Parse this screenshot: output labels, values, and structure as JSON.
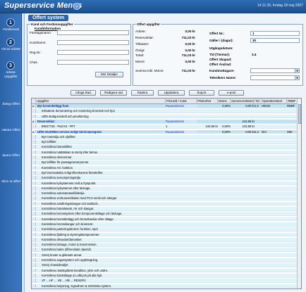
{
  "app": {
    "title": "Superservice Menus",
    "datetime": "14:11:35, fredag 18 maj 2007"
  },
  "form": {
    "title": "Offert system"
  },
  "sidebar": {
    "items": [
      {
        "num": "1",
        "label": "Fordonsval"
      },
      {
        "num": "2",
        "label": "Val av arbete"
      },
      {
        "num": "3",
        "label": "Arbete-Uppgifter"
      },
      {
        "num": "",
        "label": "Stäng Offert"
      },
      {
        "num": "",
        "label": "Hämta Offert"
      },
      {
        "num": "",
        "label": "Spara Offert"
      },
      {
        "num": "",
        "label": "Skriv ut offert"
      }
    ]
  },
  "customer": {
    "title": "Kund och Fordonsuppgifter",
    "subtitle": "Kundinformation",
    "labels": [
      "Företagsnamn:",
      "Kundnamn:",
      "Reg.Nr.:",
      "Chas."
    ],
    "details_button": "Mer Detaljer"
  },
  "offer": {
    "title": "Offert uppgifter",
    "left": [
      {
        "label": "Arbete:",
        "value": "0,00 kr"
      },
      {
        "label": "Reservdelar:",
        "value": "711,03 kr"
      },
      {
        "label": "Tillsatser:",
        "value": "0,00 kr"
      },
      {
        "label": "Övrigt:",
        "value": "0,00 kr"
      },
      {
        "label": "Totalt:",
        "value": "711,03 kr"
      },
      {
        "label": "Moms:",
        "value": "0,00 kr"
      },
      {
        "label": "Summa Inkl. Moms:",
        "value": "711,03 kr"
      }
    ],
    "right": [
      {
        "label": "Offert Nr.:",
        "value": "1"
      },
      {
        "label": "Gäller i (dagar):",
        "value": "30"
      },
      {
        "label": "Utgångsdatum:",
        "value": ""
      },
      {
        "label": "Tid (Timmar):",
        "value": "3,4"
      },
      {
        "label": "Offert Skapad:",
        "value": ""
      },
      {
        "label": "Offert Ändrad:",
        "value": ""
      },
      {
        "label": "Kundmottagare:",
        "value": ""
      },
      {
        "label": "Telenikers Namn:",
        "value": ""
      }
    ]
  },
  "toolbar": {
    "buttons": [
      "Infoga Rad",
      "Redigera rad",
      "Radera",
      "Uppdatera",
      "Export",
      "e-post"
    ]
  },
  "grid": {
    "columns": [
      "Uppgifter",
      "Prisnivå / Antal",
      "Prislenhet",
      "Moms",
      "Summa ExMoms",
      "Tid",
      "Operationskod",
      "RBBF"
    ],
    "rows": [
      {
        "type": "group",
        "task": "Byt bromsbelägg fram",
        "prisniva": "Reparationsm",
        "prislenhet": "",
        "moms": "0,00%",
        "summa": "0,00 kr",
        "tid": "1,0",
        "opkod": "H0042",
        "rbbf": "RBBF"
      },
      {
        "type": "sub",
        "task": "Inkluderar demontering och montering bromsok och hjul",
        "prisniva": "",
        "prislenhet": "",
        "moms": "",
        "summa": "",
        "tid": "",
        "opkod": "",
        "rbbf": ""
      },
      {
        "type": "sub",
        "task": "Utför slutlig kontroll och provkörning",
        "prisniva": "",
        "prislenhet": "",
        "moms": "",
        "summa": "",
        "tid": "",
        "opkod": "",
        "rbbf": ""
      },
      {
        "type": "group",
        "task": "Reservdelar:",
        "prisniva": "Reparationsm",
        "prislenhet": "",
        "moms": "",
        "summa": "244,96 kr",
        "tid": "",
        "opkod": "",
        "rbbf": ""
      },
      {
        "type": "sub",
        "task": "89047725 - Pad Kit - FRT",
        "prisniva": "1",
        "prislenhet": "244,96 kr",
        "moms": "0,00%",
        "summa": "244,96 kr",
        "tid": "",
        "opkod": "",
        "rbbf": ""
      },
      {
        "type": "group",
        "task": "Utför 60,000km service enligt Serviceprogram",
        "prisniva": "Reparationsm",
        "prislenhet": "",
        "moms": "0,00%",
        "summa": "0,00 kr",
        "tid": "2,4",
        "opkod": "N/A",
        "rbbf": "S60"
      },
      {
        "type": "sub",
        "task": "Byt motorolja och oljefilter",
        "prisniva": "",
        "prislenhet": "",
        "moms": "",
        "summa": "",
        "tid": "",
        "opkod": "",
        "rbbf": ""
      },
      {
        "type": "sub",
        "task": "Byt luftfilter",
        "prisniva": "",
        "prislenhet": "",
        "moms": "",
        "summa": "",
        "tid": "",
        "opkod": "",
        "rbbf": ""
      },
      {
        "type": "sub",
        "task": "Kontrollera bränslefilter",
        "prisniva": "",
        "prislenhet": "",
        "moms": "",
        "summa": "",
        "tid": "",
        "opkod": "",
        "rbbf": ""
      },
      {
        "type": "sub",
        "task": "Kontrollera tvättätskan & smörj efter behov.",
        "prisniva": "",
        "prislenhet": "",
        "moms": "",
        "summa": "",
        "tid": "",
        "opkod": "",
        "rbbf": ""
      },
      {
        "type": "sub",
        "task": "Kontrollera drivremmar",
        "prisniva": "",
        "prislenhet": "",
        "moms": "",
        "summa": "",
        "tid": "",
        "opkod": "",
        "rbbf": ""
      },
      {
        "type": "sub",
        "task": "Byt luftfilter för passagerarutrymmet",
        "prisniva": "",
        "prislenhet": "",
        "moms": "",
        "summa": "",
        "tid": "",
        "opkod": "",
        "rbbf": ""
      },
      {
        "type": "sub",
        "task": "Kontrollera A/C funktion",
        "prisniva": "",
        "prislenhet": "",
        "moms": "",
        "summa": "",
        "tid": "",
        "opkod": "",
        "rbbf": ""
      },
      {
        "type": "sub",
        "task": "Byt bromsvätska enligt tillverkarens föreskrifter.",
        "prisniva": "",
        "prislenhet": "",
        "moms": "",
        "summa": "",
        "tid": "",
        "opkod": "",
        "rbbf": ""
      },
      {
        "type": "sub",
        "task": "Kontrollera servostyrningsolja",
        "prisniva": "",
        "prislenhet": "",
        "moms": "",
        "summa": "",
        "tid": "",
        "opkod": "",
        "rbbf": ""
      },
      {
        "type": "sub",
        "task": "Kontrollera kylsystemets nivå & fryspunkt.",
        "prisniva": "",
        "prislenhet": "",
        "moms": "",
        "summa": "",
        "tid": "",
        "opkod": "",
        "rbbf": ""
      },
      {
        "type": "sub",
        "task": "Kontrollera kylsystemet efter läckage.",
        "prisniva": "",
        "prislenhet": "",
        "moms": "",
        "summa": "",
        "tid": "",
        "opkod": "",
        "rbbf": ""
      },
      {
        "type": "sub",
        "task": "Kontrollera automatväxellådsolja",
        "prisniva": "",
        "prislenhet": "",
        "moms": "",
        "summa": "",
        "tid": "",
        "opkod": "",
        "rbbf": ""
      },
      {
        "type": "sub",
        "task": "Kontrollera vevhusventilation med PCV-ventil och slangar",
        "prisniva": "",
        "prislenhet": "",
        "moms": "",
        "summa": "",
        "tid": "",
        "opkod": "",
        "rbbf": ""
      },
      {
        "type": "sub",
        "task": "Kontrollera avluftningsslangar och tanklock.",
        "prisniva": "",
        "prislenhet": "",
        "moms": "",
        "summa": "",
        "tid": "",
        "opkod": "",
        "rbbf": ""
      },
      {
        "type": "sub",
        "task": "Kontrollera bränsletank, rör och slangar.",
        "prisniva": "",
        "prislenhet": "",
        "moms": "",
        "summa": "",
        "tid": "",
        "opkod": "",
        "rbbf": ""
      },
      {
        "type": "sub",
        "task": "Kontrollera bromssystem efter komponentslitage och läckage.",
        "prisniva": "",
        "prislenhet": "",
        "moms": "",
        "summa": "",
        "tid": "",
        "opkod": "",
        "rbbf": ""
      },
      {
        "type": "sub",
        "task": "Kontrollera bromsbelägg och bromsbackar efter slitage.",
        "prisniva": "",
        "prislenhet": "",
        "moms": "",
        "summa": "",
        "tid": "",
        "opkod": "",
        "rbbf": ""
      },
      {
        "type": "sub",
        "task": "Kontrollera bromsslangar och bromsrör.",
        "prisniva": "",
        "prislenhet": "",
        "moms": "",
        "summa": "",
        "tid": "",
        "opkod": "",
        "rbbf": ""
      },
      {
        "type": "sub",
        "task": "Kontrollera parkeringsbroms: funktion, spel",
        "prisniva": "",
        "prislenhet": "",
        "moms": "",
        "summa": "",
        "tid": "",
        "opkod": "",
        "rbbf": ""
      },
      {
        "type": "sub",
        "task": "Kontrollera fjädring & styrningskomponenter.",
        "prisniva": "",
        "prislenhet": "",
        "moms": "",
        "summa": "",
        "tid": "",
        "opkod": "",
        "rbbf": ""
      },
      {
        "type": "sub",
        "task": "Kontrollera drivaxlar/damasker.",
        "prisniva": "",
        "prislenhet": "",
        "moms": "",
        "summa": "",
        "tid": "",
        "opkod": "",
        "rbbf": ""
      },
      {
        "type": "sub",
        "task": "Kontrollera läckage, motor & transmission.",
        "prisniva": "",
        "prislenhet": "",
        "moms": "",
        "summa": "",
        "tid": "",
        "opkod": "",
        "rbbf": ""
      },
      {
        "type": "sub",
        "task": "Kontrollera bakre differentials oljenivå.",
        "prisniva": "",
        "prislenhet": "",
        "moms": "",
        "summa": "",
        "tid": "",
        "opkod": "",
        "rbbf": ""
      },
      {
        "type": "sub",
        "task": "Smörj knuter & glidande annar.",
        "prisniva": "",
        "prislenhet": "",
        "moms": "",
        "summa": "",
        "tid": "",
        "opkod": "",
        "rbbf": ""
      },
      {
        "type": "sub",
        "task": "Kontrollera avgassystem och upphängning.",
        "prisniva": "",
        "prislenhet": "",
        "moms": "",
        "summa": "",
        "tid": "",
        "opkod": "",
        "rbbf": ""
      },
      {
        "type": "sub",
        "task": "Smörj chassidetaljer.",
        "prisniva": "",
        "prislenhet": "",
        "moms": "",
        "summa": "",
        "tid": "",
        "opkod": "",
        "rbbf": ""
      },
      {
        "type": "sub",
        "task": "Kontrollera rostskyddets kondition, yttre och undre.",
        "prisniva": "",
        "prislenhet": "",
        "moms": "",
        "summa": "",
        "tid": "",
        "opkod": "",
        "rbbf": ""
      },
      {
        "type": "sub",
        "task": "Kontrollera Däckslitage & Lufttryck på alla hjul.",
        "prisniva": "",
        "prislenhet": "",
        "moms": "",
        "summa": "",
        "tid": "",
        "opkod": "",
        "rbbf": ""
      },
      {
        "type": "sub",
        "task": "VF ... HF ... VB ... HB ... RESERV",
        "prisniva": "",
        "prislenhet": "",
        "moms": "",
        "summa": "",
        "tid": "",
        "opkod": "",
        "rbbf": ""
      },
      {
        "type": "sub",
        "task": "Kontrollera belysning, signalhorn & elektriska system.",
        "prisniva": "",
        "prislenhet": "",
        "moms": "",
        "summa": "",
        "tid": "",
        "opkod": "",
        "rbbf": ""
      }
    ]
  }
}
